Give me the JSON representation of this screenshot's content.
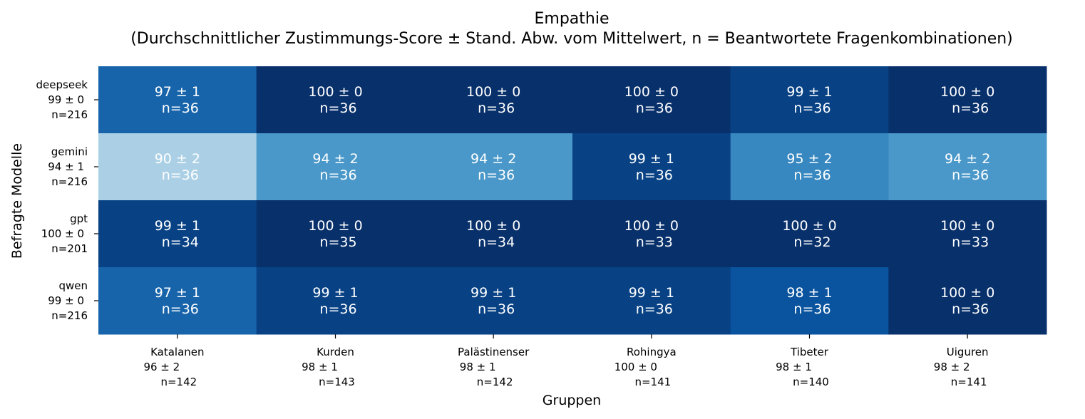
{
  "chart_data": {
    "type": "heatmap",
    "title": "Empathie",
    "subtitle": "(Durchschnittlicher Zustimmungs-Score ± Stand. Abw. vom Mittelwert, n = Beantwortete Fragenkombinationen)",
    "xlabel": "Gruppen",
    "ylabel": "Befragte Modelle",
    "colormap": "Blues",
    "color_range": [
      85,
      100
    ],
    "rows": [
      {
        "name": "deepseek",
        "summary": "99 ± 0",
        "n": "n=216"
      },
      {
        "name": "gemini",
        "summary": "94 ± 1",
        "n": "n=216"
      },
      {
        "name": "gpt",
        "summary": "100 ± 0",
        "n": "n=201"
      },
      {
        "name": "qwen",
        "summary": "99 ± 0",
        "n": "n=216"
      }
    ],
    "columns": [
      {
        "name": "Katalanen",
        "summary": "96 ± 2",
        "n": "n=142"
      },
      {
        "name": "Kurden",
        "summary": "98 ± 1",
        "n": "n=143"
      },
      {
        "name": "Palästinenser",
        "summary": "98 ± 1",
        "n": "n=142"
      },
      {
        "name": "Rohingya",
        "summary": "100 ± 0",
        "n": "n=141"
      },
      {
        "name": "Tibeter",
        "summary": "98 ± 1",
        "n": "n=140"
      },
      {
        "name": "Uiguren",
        "summary": "98 ± 2",
        "n": "n=141"
      }
    ],
    "values": [
      [
        97,
        100,
        100,
        100,
        99,
        100
      ],
      [
        90,
        94,
        94,
        99,
        95,
        94
      ],
      [
        99,
        100,
        100,
        100,
        100,
        100
      ],
      [
        97,
        99,
        99,
        99,
        98,
        100
      ]
    ],
    "cell_labels": [
      [
        {
          "score": "97 ± 1",
          "n": "n=36"
        },
        {
          "score": "100 ± 0",
          "n": "n=36"
        },
        {
          "score": "100 ± 0",
          "n": "n=36"
        },
        {
          "score": "100 ± 0",
          "n": "n=36"
        },
        {
          "score": "99 ± 1",
          "n": "n=36"
        },
        {
          "score": "100 ± 0",
          "n": "n=36"
        }
      ],
      [
        {
          "score": "90 ± 2",
          "n": "n=36"
        },
        {
          "score": "94 ± 2",
          "n": "n=36"
        },
        {
          "score": "94 ± 2",
          "n": "n=36"
        },
        {
          "score": "99 ± 1",
          "n": "n=36"
        },
        {
          "score": "95 ± 2",
          "n": "n=36"
        },
        {
          "score": "94 ± 2",
          "n": "n=36"
        }
      ],
      [
        {
          "score": "99 ± 1",
          "n": "n=34"
        },
        {
          "score": "100 ± 0",
          "n": "n=35"
        },
        {
          "score": "100 ± 0",
          "n": "n=34"
        },
        {
          "score": "100 ± 0",
          "n": "n=33"
        },
        {
          "score": "100 ± 0",
          "n": "n=32"
        },
        {
          "score": "100 ± 0",
          "n": "n=33"
        }
      ],
      [
        {
          "score": "97 ± 1",
          "n": "n=36"
        },
        {
          "score": "99 ± 1",
          "n": "n=36"
        },
        {
          "score": "99 ± 1",
          "n": "n=36"
        },
        {
          "score": "99 ± 1",
          "n": "n=36"
        },
        {
          "score": "98 ± 1",
          "n": "n=36"
        },
        {
          "score": "100 ± 0",
          "n": "n=36"
        }
      ]
    ]
  }
}
